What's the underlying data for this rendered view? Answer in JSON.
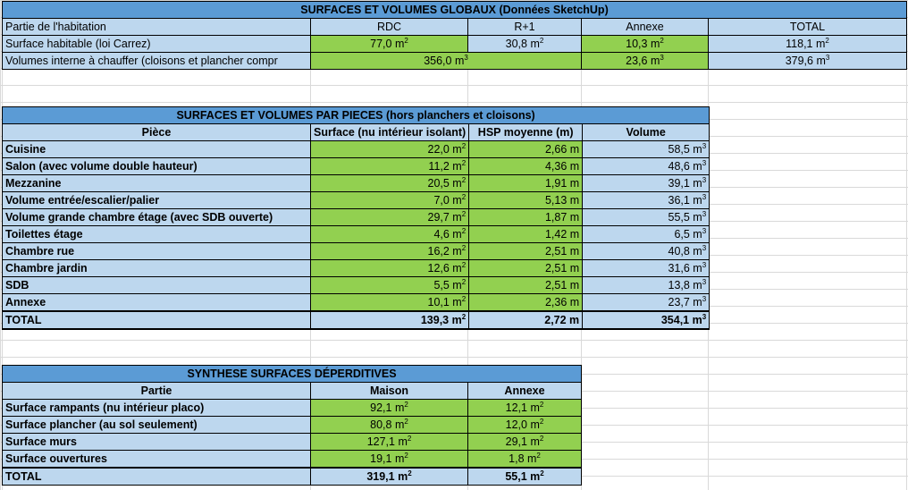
{
  "global": {
    "title": "SURFACES ET VOLUMES GLOBAUX (Données SketchUp)",
    "headers": [
      "Partie de l'habitation",
      "RDC",
      "R+1",
      "Annexe",
      "TOTAL"
    ],
    "surface_row": {
      "label": "Surface habitable (loi Carrez)",
      "rdc": "77,0 m²",
      "r1": "30,8 m²",
      "annexe": "10,3 m²",
      "total": "118,1 m²"
    },
    "volume_row": {
      "label": "Volumes interne à chauffer (cloisons et plancher compr",
      "rdc_r1": "356,0 m³",
      "annexe": "23,6 m³",
      "total": "379,6 m³"
    }
  },
  "pieces": {
    "title": "SURFACES ET VOLUMES PAR PIECES (hors planchers et cloisons)",
    "headers": [
      "Pièce",
      "Surface (nu intérieur isolant)",
      "HSP moyenne (m)",
      "Volume"
    ],
    "rows": [
      {
        "piece": "Cuisine",
        "surface": "22,0 m²",
        "hsp": "2,66 m",
        "volume": "58,5 m³"
      },
      {
        "piece": "Salon (avec volume double hauteur)",
        "surface": "11,2 m²",
        "hsp": "4,36 m",
        "volume": "48,6 m³"
      },
      {
        "piece": "Mezzanine",
        "surface": "20,5 m²",
        "hsp": "1,91 m",
        "volume": "39,1 m³"
      },
      {
        "piece": "Volume entrée/escalier/palier",
        "surface": "7,0 m²",
        "hsp": "5,13 m",
        "volume": "36,1 m³"
      },
      {
        "piece": "Volume grande chambre étage (avec SDB ouverte)",
        "surface": "29,7 m²",
        "hsp": "1,87 m",
        "volume": "55,5 m³"
      },
      {
        "piece": "Toilettes étage",
        "surface": "4,6 m²",
        "hsp": "1,42 m",
        "volume": "6,5 m³"
      },
      {
        "piece": "Chambre rue",
        "surface": "16,2 m²",
        "hsp": "2,51 m",
        "volume": "40,8 m³"
      },
      {
        "piece": "Chambre jardin",
        "surface": "12,6 m²",
        "hsp": "2,51 m",
        "volume": "31,6 m³"
      },
      {
        "piece": "SDB",
        "surface": "5,5 m²",
        "hsp": "2,51 m",
        "volume": "13,8 m³"
      },
      {
        "piece": "Annexe",
        "surface": "10,1 m²",
        "hsp": "2,36 m",
        "volume": "23,7 m³"
      }
    ],
    "total": {
      "piece": "TOTAL",
      "surface": "139,3 m²",
      "hsp": "2,72 m",
      "volume": "354,1 m³"
    }
  },
  "synthese": {
    "title": "SYNTHESE SURFACES DÉPERDITIVES",
    "headers": [
      "Partie",
      "Maison",
      "Annexe"
    ],
    "rows": [
      {
        "partie": "Surface rampants (nu intérieur placo)",
        "maison": "92,1 m²",
        "annexe": "12,1 m²"
      },
      {
        "partie": "Surface plancher (au sol seulement)",
        "maison": "80,8 m²",
        "annexe": "12,0 m²"
      },
      {
        "partie": "Surface murs",
        "maison": "127,1 m²",
        "annexe": "29,1 m²"
      },
      {
        "partie": "Surface ouvertures",
        "maison": "19,1 m²",
        "annexe": "1,8 m²"
      }
    ],
    "total": {
      "partie": "TOTAL",
      "maison": "319,1 m²",
      "annexe": "55,1 m²"
    }
  }
}
